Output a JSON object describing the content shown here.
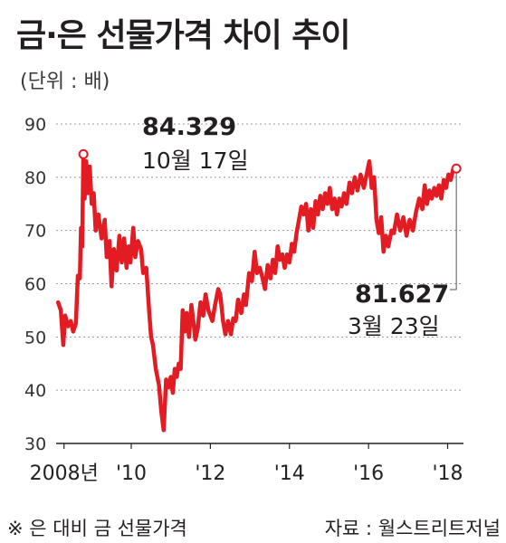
{
  "title": "금·은 선물가격 차이 추이",
  "unit_note": "(단위 : 배)",
  "footnote": "※ 은 대비 금 선물가격",
  "source": "자료 : 월스트리트저널",
  "colors": {
    "line": "#e31b23",
    "grid": "#9a9a9a",
    "axis": "#222222"
  },
  "chart_data": {
    "type": "line",
    "title": "금·은 선물가격 차이 추이",
    "ylabel": "(단위 : 배)",
    "ylim": [
      30,
      90
    ],
    "yticks": [
      30,
      40,
      50,
      60,
      70,
      80,
      90
    ],
    "xlim": [
      2008.1,
      2018.4
    ],
    "xticks": [
      {
        "x": 2008.3,
        "label": "2008년"
      },
      {
        "x": 2010,
        "label": "'10"
      },
      {
        "x": 2012,
        "label": "'12"
      },
      {
        "x": 2014,
        "label": "'14"
      },
      {
        "x": 2016,
        "label": "'16"
      },
      {
        "x": 2018,
        "label": "'18"
      }
    ],
    "grid": "horizontal dotted",
    "series": [
      {
        "values": [
          [
            2008.15,
            56.5
          ],
          [
            2008.22,
            55.0
          ],
          [
            2008.28,
            48.5
          ],
          [
            2008.33,
            54.0
          ],
          [
            2008.4,
            52.0
          ],
          [
            2008.47,
            53.0
          ],
          [
            2008.53,
            51.0
          ],
          [
            2008.6,
            52.5
          ],
          [
            2008.65,
            61.5
          ],
          [
            2008.7,
            61.0
          ],
          [
            2008.73,
            70.5
          ],
          [
            2008.76,
            67.0
          ],
          [
            2008.79,
            84.3
          ],
          [
            2008.82,
            76.0
          ],
          [
            2008.86,
            83.0
          ],
          [
            2008.9,
            77.0
          ],
          [
            2008.95,
            82.0
          ],
          [
            2009.0,
            75.0
          ],
          [
            2009.05,
            77.0
          ],
          [
            2009.1,
            70.0
          ],
          [
            2009.17,
            73.0
          ],
          [
            2009.25,
            68.5
          ],
          [
            2009.33,
            72.0
          ],
          [
            2009.38,
            65.0
          ],
          [
            2009.45,
            68.0
          ],
          [
            2009.5,
            59.5
          ],
          [
            2009.56,
            66.5
          ],
          [
            2009.63,
            62.5
          ],
          [
            2009.7,
            69.0
          ],
          [
            2009.76,
            64.0
          ],
          [
            2009.82,
            68.5
          ],
          [
            2009.88,
            63.0
          ],
          [
            2009.93,
            67.0
          ],
          [
            2009.98,
            64.0
          ],
          [
            2010.05,
            70.5
          ],
          [
            2010.1,
            65.0
          ],
          [
            2010.17,
            68.0
          ],
          [
            2010.25,
            66.5
          ],
          [
            2010.3,
            62.0
          ],
          [
            2010.38,
            63.0
          ],
          [
            2010.45,
            55.0
          ],
          [
            2010.5,
            50.0
          ],
          [
            2010.55,
            48.5
          ],
          [
            2010.62,
            44.0
          ],
          [
            2010.7,
            41.0
          ],
          [
            2010.76,
            36.0
          ],
          [
            2010.82,
            32.5
          ],
          [
            2010.88,
            42.0
          ],
          [
            2010.94,
            40.5
          ],
          [
            2011.0,
            42.5
          ],
          [
            2011.05,
            39.5
          ],
          [
            2011.1,
            44.0
          ],
          [
            2011.15,
            42.5
          ],
          [
            2011.2,
            45.0
          ],
          [
            2011.25,
            44.0
          ],
          [
            2011.3,
            55.0
          ],
          [
            2011.35,
            51.0
          ],
          [
            2011.4,
            54.5
          ],
          [
            2011.46,
            50.0
          ],
          [
            2011.52,
            56.0
          ],
          [
            2011.58,
            52.5
          ],
          [
            2011.62,
            49.5
          ],
          [
            2011.68,
            51.5
          ],
          [
            2011.75,
            56.5
          ],
          [
            2011.82,
            54.0
          ],
          [
            2011.88,
            58.0
          ],
          [
            2011.95,
            55.0
          ],
          [
            2012.05,
            53.0
          ],
          [
            2012.12,
            56.0
          ],
          [
            2012.2,
            59.0
          ],
          [
            2012.25,
            58.0
          ],
          [
            2012.32,
            53.0
          ],
          [
            2012.38,
            50.5
          ],
          [
            2012.45,
            53.0
          ],
          [
            2012.52,
            50.5
          ],
          [
            2012.58,
            53.5
          ],
          [
            2012.64,
            53.0
          ],
          [
            2012.7,
            57.0
          ],
          [
            2012.78,
            54.5
          ],
          [
            2012.85,
            58.0
          ],
          [
            2012.9,
            56.0
          ],
          [
            2012.98,
            62.0
          ],
          [
            2013.05,
            60.5
          ],
          [
            2013.12,
            66.0
          ],
          [
            2013.18,
            62.0
          ],
          [
            2013.25,
            63.0
          ],
          [
            2013.32,
            61.0
          ],
          [
            2013.38,
            59.0
          ],
          [
            2013.45,
            63.5
          ],
          [
            2013.52,
            61.0
          ],
          [
            2013.58,
            64.5
          ],
          [
            2013.64,
            62.0
          ],
          [
            2013.7,
            67.0
          ],
          [
            2013.76,
            64.5
          ],
          [
            2013.82,
            65.5
          ],
          [
            2013.88,
            63.0
          ],
          [
            2013.94,
            65.5
          ],
          [
            2014.0,
            64.0
          ],
          [
            2014.06,
            67.5
          ],
          [
            2014.12,
            66.0
          ],
          [
            2014.18,
            69.5
          ],
          [
            2014.24,
            72.0
          ],
          [
            2014.3,
            74.5
          ],
          [
            2014.36,
            73.0
          ],
          [
            2014.42,
            75.0
          ],
          [
            2014.48,
            70.0
          ],
          [
            2014.54,
            74.0
          ],
          [
            2014.6,
            70.5
          ],
          [
            2014.66,
            75.5
          ],
          [
            2014.72,
            73.0
          ],
          [
            2014.78,
            76.5
          ],
          [
            2014.84,
            74.0
          ],
          [
            2014.9,
            77.0
          ],
          [
            2014.96,
            75.0
          ],
          [
            2015.02,
            78.0
          ],
          [
            2015.08,
            74.0
          ],
          [
            2015.14,
            76.0
          ],
          [
            2015.2,
            73.0
          ],
          [
            2015.26,
            76.0
          ],
          [
            2015.32,
            74.5
          ],
          [
            2015.38,
            77.0
          ],
          [
            2015.44,
            75.0
          ],
          [
            2015.52,
            79.0
          ],
          [
            2015.58,
            77.0
          ],
          [
            2015.65,
            80.0
          ],
          [
            2015.72,
            77.5
          ],
          [
            2015.8,
            80.5
          ],
          [
            2015.88,
            78.0
          ],
          [
            2015.95,
            80.5
          ],
          [
            2016.02,
            83.0
          ],
          [
            2016.08,
            78.0
          ],
          [
            2016.14,
            80.0
          ],
          [
            2016.2,
            72.0
          ],
          [
            2016.26,
            69.5
          ],
          [
            2016.32,
            72.5
          ],
          [
            2016.38,
            66.0
          ],
          [
            2016.44,
            69.0
          ],
          [
            2016.5,
            67.0
          ],
          [
            2016.58,
            70.0
          ],
          [
            2016.64,
            69.5
          ],
          [
            2016.72,
            73.0
          ],
          [
            2016.8,
            70.0
          ],
          [
            2016.88,
            72.5
          ],
          [
            2016.96,
            69.0
          ],
          [
            2017.04,
            72.0
          ],
          [
            2017.12,
            70.0
          ],
          [
            2017.2,
            73.5
          ],
          [
            2017.28,
            76.0
          ],
          [
            2017.36,
            74.0
          ],
          [
            2017.42,
            78.5
          ],
          [
            2017.48,
            75.0
          ],
          [
            2017.54,
            77.5
          ],
          [
            2017.6,
            76.0
          ],
          [
            2017.66,
            78.0
          ],
          [
            2017.72,
            76.5
          ],
          [
            2017.78,
            78.5
          ],
          [
            2017.84,
            76.0
          ],
          [
            2017.9,
            79.5
          ],
          [
            2017.96,
            78.0
          ],
          [
            2018.02,
            80.5
          ],
          [
            2018.08,
            79.5
          ],
          [
            2018.14,
            81.5
          ],
          [
            2018.22,
            81.627
          ]
        ]
      }
    ],
    "annotations": [
      {
        "x": 2008.79,
        "y": 84.329,
        "value": "84.329",
        "date": "10월 17일"
      },
      {
        "x": 2018.22,
        "y": 81.627,
        "value": "81.627",
        "date": "3월 23일"
      }
    ]
  }
}
